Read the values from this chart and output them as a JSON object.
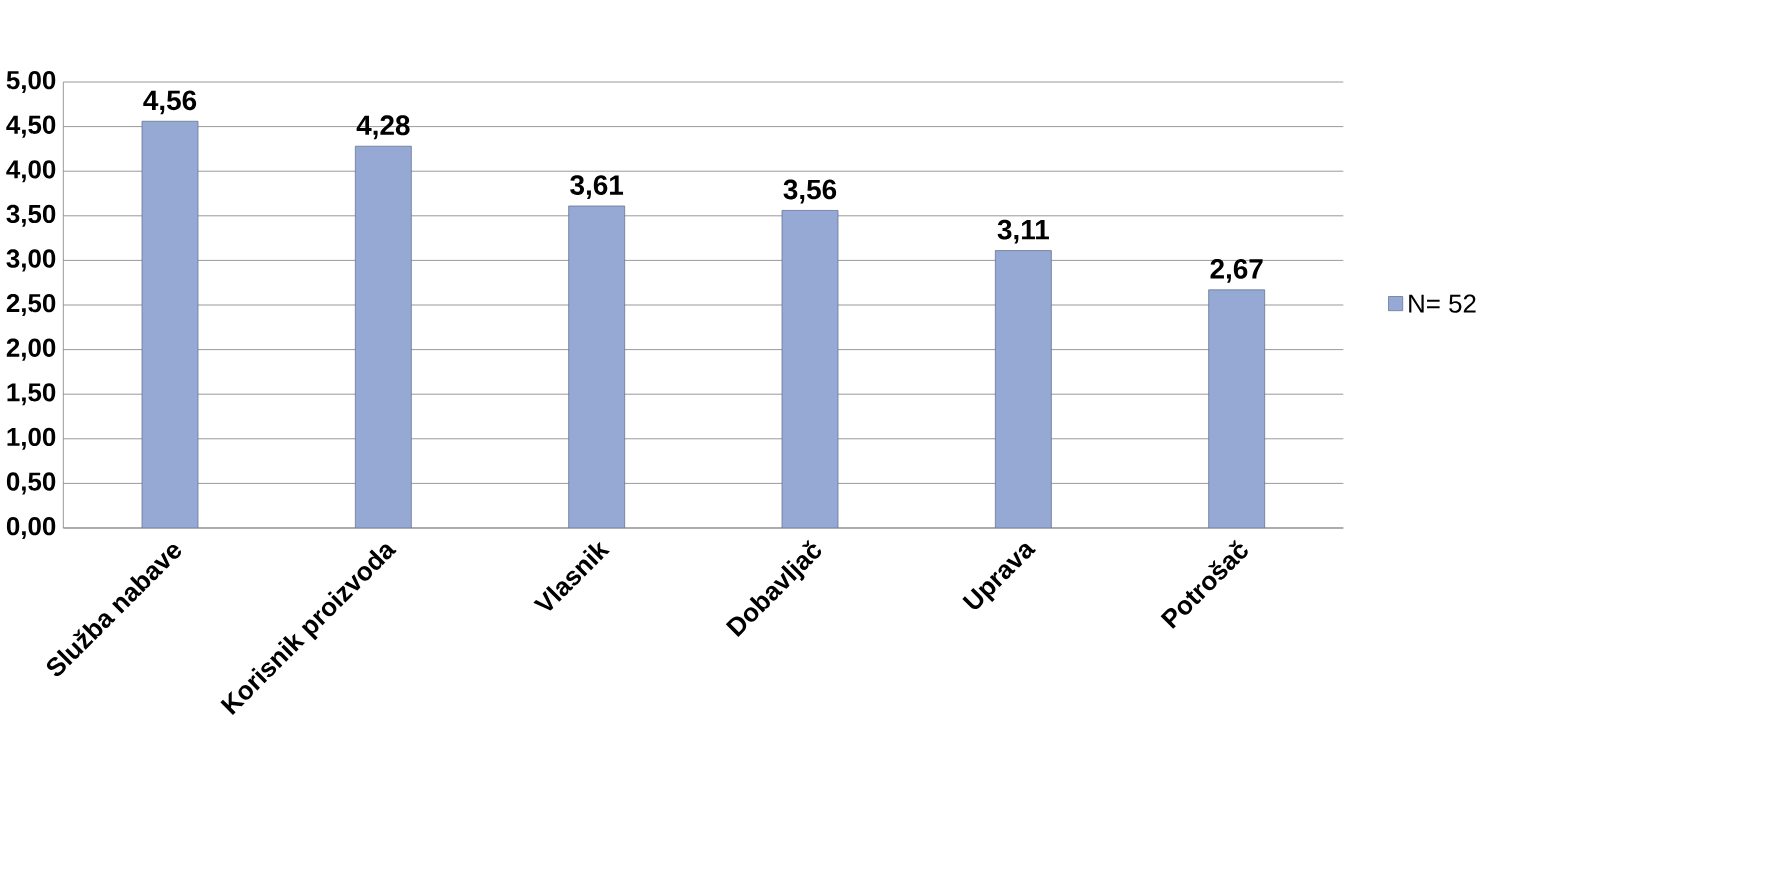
{
  "chart_data": {
    "type": "bar",
    "categories": [
      "Služba nabave",
      "Korisnik proizvoda",
      "Vlasnik",
      "Dobavljač",
      "Uprava",
      "Potrošač"
    ],
    "series": [
      {
        "name": "N= 52",
        "color": "#95a9d4",
        "values": [
          4.56,
          4.28,
          3.61,
          3.56,
          3.11,
          2.67
        ],
        "value_labels": [
          "4,56",
          "4,28",
          "3,61",
          "3,56",
          "3,11",
          "2,67"
        ]
      }
    ],
    "ylim": [
      0,
      5
    ],
    "yticks": [
      {
        "value": 0,
        "label": "0,00"
      },
      {
        "value": 0.5,
        "label": "0,50"
      },
      {
        "value": 1,
        "label": "1,00"
      },
      {
        "value": 1.5,
        "label": "1,50"
      },
      {
        "value": 2,
        "label": "2,00"
      },
      {
        "value": 2.5,
        "label": "2,50"
      },
      {
        "value": 3,
        "label": "3,00"
      },
      {
        "value": 3.5,
        "label": "3,50"
      },
      {
        "value": 4,
        "label": "4,00"
      },
      {
        "value": 4.5,
        "label": "4,50"
      },
      {
        "value": 5,
        "label": "5,00"
      }
    ],
    "grid": "y",
    "legend": "right"
  }
}
